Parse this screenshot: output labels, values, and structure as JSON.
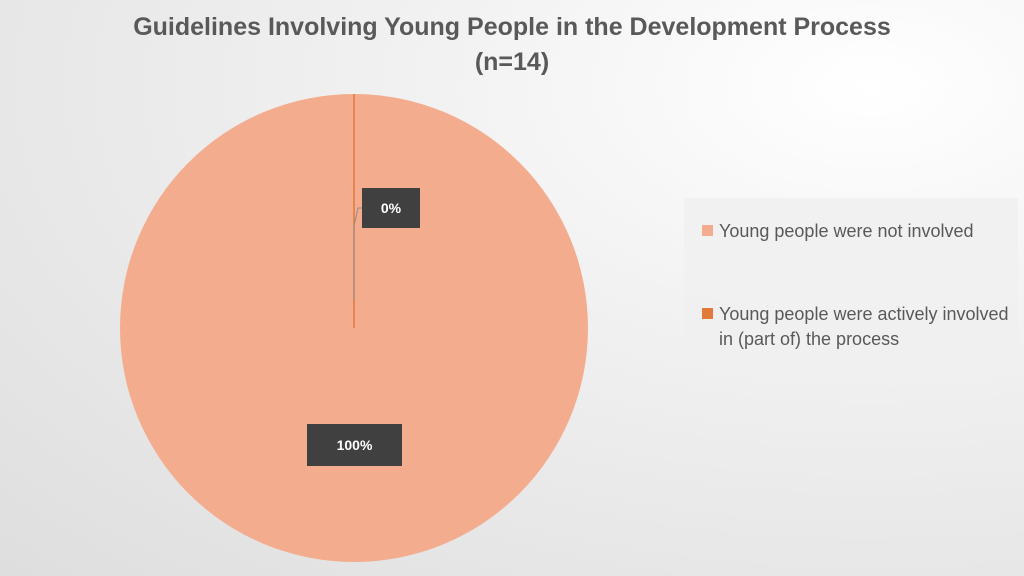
{
  "chart_data": {
    "type": "pie",
    "title": "Guidelines Involving Young People in the Development Process",
    "subtitle": "(n=14)",
    "slices": [
      {
        "name": "Young people were not involved",
        "value": 14,
        "label": "100%",
        "color": "#f4ac8e"
      },
      {
        "name": "Young people were actively involved in (part of) the process",
        "value": 0,
        "label": "0%",
        "color": "#e07b39"
      }
    ],
    "legend_position": "right"
  }
}
